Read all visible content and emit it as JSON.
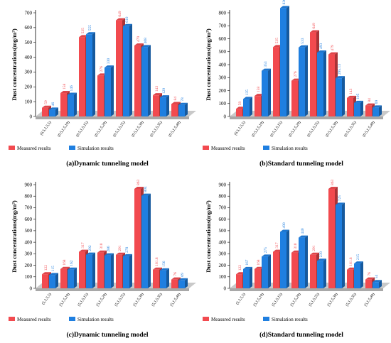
{
  "colors": {
    "measured": "#f24a4f",
    "simulation": "#1f7fe0",
    "floor": "#c9c9c9"
  },
  "chart_data": [
    {
      "type": "bar",
      "caption": "(a)Dynamic tunneling model",
      "ylabel": "Dust concentrations(mg/m³)",
      "ylim": [
        0,
        700
      ],
      "yticks": [
        0,
        100,
        200,
        300,
        400,
        500,
        600,
        700
      ],
      "categories": [
        "(0.5,1,5,5)",
        "(0.5,1,5,10)",
        "(0.5,1,5,15)",
        "(0.5,1,5,20)",
        "(0.5,1,5,25)",
        "(0.5,1,5,30)",
        "(0.5,1,5,35)",
        "(0.5,1,5,40)"
      ],
      "series": [
        {
          "name": "Measured results",
          "values": [
            59,
            158,
            535,
            276,
            649,
            479,
            143,
            84
          ],
          "labels": [
            "59",
            "158",
            "535",
            "276",
            "649",
            "479",
            "143",
            "84"
          ]
        },
        {
          "name": "Simulation results",
          "values": [
            46,
            146,
            555,
            330,
            610,
            468,
            129,
            78
          ],
          "labels": [
            "46",
            "146",
            "555",
            "330",
            "610",
            "468",
            "129",
            "78"
          ]
        }
      ],
      "legend": [
        "Measured results",
        "Simulation results"
      ]
    },
    {
      "type": "bar",
      "caption": "(b)Standard tunneling model",
      "ylabel": "Dust concentrations(mg/m³)",
      "ylim": [
        0,
        800
      ],
      "yticks": [
        0,
        100,
        200,
        300,
        400,
        500,
        600,
        700,
        800
      ],
      "categories": [
        "(0.5,1,5,5)",
        "(0.5,1,5,10)",
        "(0.5,1,5,15)",
        "(0.5,1,5,20)",
        "(0.5,1,5,25)",
        "(0.5,1,5,30)",
        "(0.5,1,5,35)",
        "(0.5,1,5,40)"
      ],
      "series": [
        {
          "name": "Measured results",
          "values": [
            59,
            158,
            535,
            276,
            649,
            479,
            143,
            84
          ],
          "labels": [
            "59",
            "158",
            "535",
            "276",
            "649",
            "479",
            "143",
            "84"
          ]
        },
        {
          "name": "Simulation results",
          "values": [
            135,
            353,
            836,
            533,
            493,
            295.13,
            105,
            69
          ],
          "labels": [
            "135",
            "353",
            "836",
            "533",
            "493",
            "295.13",
            "105",
            "69"
          ]
        }
      ],
      "legend": [
        "Measured results",
        "Simulation results"
      ]
    },
    {
      "type": "bar",
      "caption": "(c)Dynamic tunneling model",
      "ylabel": "Dust concentrations(mg/m³)",
      "ylim": [
        0,
        900
      ],
      "yticks": [
        0,
        100,
        200,
        300,
        400,
        500,
        600,
        700,
        800,
        900
      ],
      "categories": [
        "(5,1,5,5)",
        "(5,1,5,10)",
        "(5,1,5,15)",
        "(5,1,5,20)",
        "(5,1,5,25)",
        "(5,1,5,30)",
        "(5,1,5,35)",
        "(5,1,5,40)"
      ],
      "series": [
        {
          "name": "Measured results",
          "values": [
            122,
            168,
            317,
            310,
            291,
            863,
            161.8,
            76
          ],
          "labels": [
            "122",
            "168",
            "317",
            "310",
            "291",
            "863",
            "161.8",
            "76"
          ]
        },
        {
          "name": "Simulation results",
          "values": [
            115,
            162,
            292,
            286,
            278,
            804,
            156,
            69
          ],
          "labels": [
            "115",
            "162",
            "292",
            "286",
            "278",
            "804",
            "156",
            "69"
          ]
        }
      ],
      "legend": [
        "Measured results",
        "Simulation results"
      ]
    },
    {
      "type": "bar",
      "caption": "(d)Standard tunneling model",
      "ylabel": "Dust concentrations(mg/m³)",
      "ylim": [
        0,
        900
      ],
      "yticks": [
        0,
        100,
        200,
        300,
        400,
        500,
        600,
        700,
        800,
        900
      ],
      "categories": [
        "(5,1,5,5)",
        "(5,1,5,10)",
        "(5,1,5,15)",
        "(5,1,5,20)",
        "(5,1,5,25)",
        "(5,1,5,30)",
        "(5,1,5,35)",
        "(5,1,5,40)"
      ],
      "series": [
        {
          "name": "Measured results",
          "values": [
            122,
            168,
            317,
            310,
            291,
            863,
            161.8,
            76
          ],
          "labels": [
            "122",
            "168",
            "317",
            "310",
            "291",
            "863",
            "161.8",
            "76"
          ]
        },
        {
          "name": "Simulation results",
          "values": [
            167,
            275,
            490,
            440,
            239,
            725,
            215,
            54
          ],
          "labels": [
            "167",
            "275",
            "490",
            "440",
            "239",
            "725",
            "215",
            "54"
          ]
        }
      ],
      "legend": [
        "Measured results",
        "Simulation results"
      ]
    }
  ]
}
